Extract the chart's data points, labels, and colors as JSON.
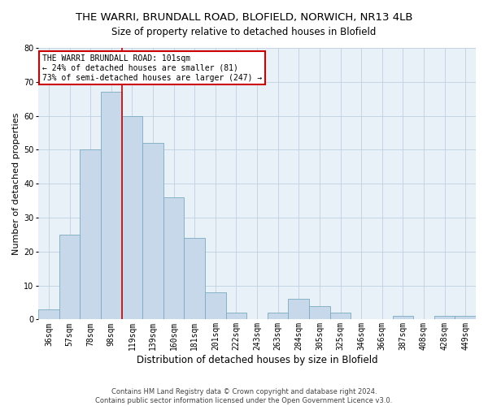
{
  "title1": "THE WARRI, BRUNDALL ROAD, BLOFIELD, NORWICH, NR13 4LB",
  "title2": "Size of property relative to detached houses in Blofield",
  "xlabel": "Distribution of detached houses by size in Blofield",
  "ylabel": "Number of detached properties",
  "bar_labels": [
    "36sqm",
    "57sqm",
    "78sqm",
    "98sqm",
    "119sqm",
    "139sqm",
    "160sqm",
    "181sqm",
    "201sqm",
    "222sqm",
    "243sqm",
    "263sqm",
    "284sqm",
    "305sqm",
    "325sqm",
    "346sqm",
    "366sqm",
    "387sqm",
    "408sqm",
    "428sqm",
    "449sqm"
  ],
  "bar_values": [
    3,
    25,
    50,
    67,
    60,
    52,
    36,
    24,
    8,
    2,
    0,
    2,
    6,
    4,
    2,
    0,
    0,
    1,
    0,
    1,
    1
  ],
  "bar_color": "#c8d8eb",
  "bar_edgecolor": "#7aaabf",
  "vline_color": "#cc0000",
  "vline_x_index": 3,
  "ylim": [
    0,
    80
  ],
  "yticks": [
    0,
    10,
    20,
    30,
    40,
    50,
    60,
    70,
    80
  ],
  "annotation_text": "THE WARRI BRUNDALL ROAD: 101sqm\n← 24% of detached houses are smaller (81)\n73% of semi-detached houses are larger (247) →",
  "annotation_box_color": "#ffffff",
  "annotation_box_edgecolor": "#cc0000",
  "footnote1": "Contains HM Land Registry data © Crown copyright and database right 2024.",
  "footnote2": "Contains public sector information licensed under the Open Government Licence v3.0.",
  "background_color": "#ffffff",
  "axes_facecolor": "#e8f0f8",
  "grid_color": "#c0d0e0",
  "title1_fontsize": 9.5,
  "title2_fontsize": 8.5,
  "ylabel_fontsize": 8,
  "xlabel_fontsize": 8.5,
  "tick_fontsize": 7,
  "annot_fontsize": 7,
  "footnote_fontsize": 6
}
